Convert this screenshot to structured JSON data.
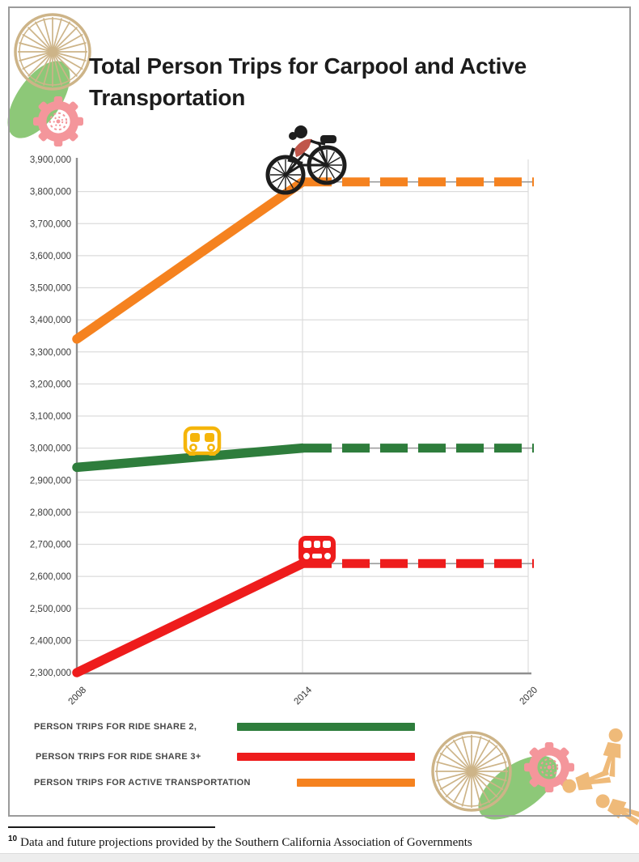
{
  "page": {
    "title": "Total Person Trips for Carpool and Active Transportation",
    "footnote": {
      "marker": "10",
      "text": "Data and future projections provided by the Southern California Association of Governments"
    }
  },
  "chart_data": {
    "type": "line",
    "title": "Total Person Trips for Carpool and Active Transportation",
    "x": [
      2008,
      2014,
      2020
    ],
    "x_tick_labels": [
      "2008",
      "2014",
      "2020"
    ],
    "ylim": [
      2300000,
      3900000
    ],
    "ytick_step": 100000,
    "y_tick_labels": [
      "3,900,000",
      "3,800,000",
      "3,700,000",
      "3,600,000",
      "3,500,000",
      "3,400,000",
      "3,300,000",
      "3,200,000",
      "3,100,000",
      "3,000,000",
      "2,900,000",
      "2,800,000",
      "2,700,000",
      "2,600,000",
      "2,500,000",
      "2,400,000",
      "2,300,000"
    ],
    "grid": true,
    "legend_position": "below-left",
    "projection": "values after 2014 are drawn as dashes (future projection)",
    "series": [
      {
        "name": "PERSON TRIPS FOR RIDE SHARE 2,",
        "color": "#2e7d3c",
        "values": [
          2940000,
          3000000,
          3000000
        ],
        "solid_until": 2014
      },
      {
        "name": "PERSON TRIPS FOR RIDE SHARE 3+",
        "color": "#ee1c1c",
        "values": [
          2300000,
          2640000,
          2640000
        ],
        "solid_until": 2014
      },
      {
        "name": "PERSON TRIPS FOR ACTIVE TRANSPORTATION",
        "color": "#f5821f",
        "values": [
          3340000,
          3830000,
          3830000
        ],
        "solid_until": 2014
      }
    ]
  },
  "decorations": {
    "wheel_color": "#cdb488",
    "gear_color": "#f4969b",
    "leaf_color": "#8dc878",
    "people_color": "#efba79",
    "cyclist_shirt": "#c0564b",
    "van_yellow": "#f5b50a",
    "van_red": "#ee1c1c",
    "grid_color": "#dcdcdc",
    "axis_color": "#8f8f8f",
    "projection_underline": "#9a9a9a",
    "tick_text_color": "#3c3c3c"
  }
}
